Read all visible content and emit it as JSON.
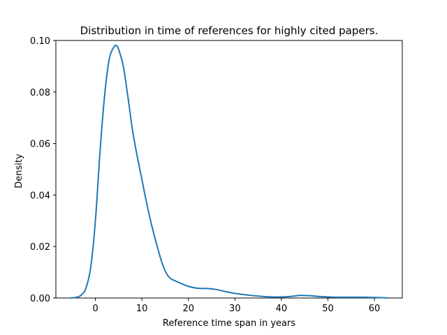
{
  "chart_data": {
    "type": "line",
    "title": "Distribution in time of references for highly cited papers.",
    "xlabel": "Reference time span in years",
    "ylabel": "Density",
    "xlim": [
      -8.5,
      66.0
    ],
    "ylim": [
      0.0,
      0.1
    ],
    "xticks": [
      0,
      10,
      20,
      30,
      40,
      50,
      60
    ],
    "yticks": [
      0.0,
      0.02,
      0.04,
      0.06,
      0.08,
      0.1
    ],
    "xtick_labels": [
      "0",
      "10",
      "20",
      "30",
      "40",
      "50",
      "60"
    ],
    "ytick_labels": [
      "0.00",
      "0.02",
      "0.04",
      "0.06",
      "0.08",
      "0.10"
    ],
    "grid": false,
    "line_color": "#1f77b4",
    "series": [
      {
        "x": [
          -5.5,
          -4,
          -3,
          -2,
          -1,
          0,
          1,
          2,
          3,
          4,
          4.5,
          5,
          6,
          7,
          8,
          9,
          10,
          11,
          12,
          13,
          14,
          15,
          16,
          17,
          18,
          20,
          22,
          24,
          26,
          28,
          30,
          33,
          36,
          38,
          40,
          42,
          44,
          46,
          48,
          50,
          52,
          54,
          56,
          58,
          60,
          62,
          63
        ],
        "y": [
          0.0,
          0.0003,
          0.0012,
          0.004,
          0.012,
          0.03,
          0.057,
          0.079,
          0.093,
          0.0975,
          0.098,
          0.0965,
          0.09,
          0.078,
          0.065,
          0.055,
          0.046,
          0.037,
          0.029,
          0.022,
          0.0155,
          0.0105,
          0.0078,
          0.0068,
          0.006,
          0.0045,
          0.0038,
          0.0037,
          0.0033,
          0.0025,
          0.0018,
          0.0011,
          0.0006,
          0.0004,
          0.0004,
          0.0006,
          0.001,
          0.0009,
          0.0006,
          0.0004,
          0.0003,
          0.0003,
          0.0003,
          0.0003,
          0.0002,
          0.0001,
          0.0
        ]
      }
    ]
  }
}
